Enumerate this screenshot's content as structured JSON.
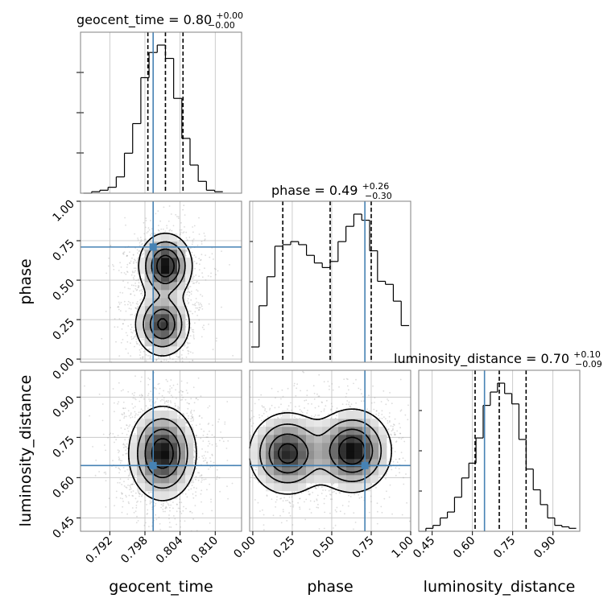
{
  "colors": {
    "truth": "#4682b4",
    "hist": "#000000",
    "quantile": "#000000",
    "grid": "#c0c0c0",
    "frame": "#808080",
    "density_max": "#111111"
  },
  "parameters": [
    {
      "key": "geocent_time",
      "label": "geocent_time",
      "range": [
        0.787,
        0.8145
      ],
      "ticks": [
        0.792,
        0.798,
        0.804,
        0.81
      ],
      "tick_labels": [
        "0.792",
        "0.798",
        "0.804",
        "0.810"
      ],
      "truth": 0.7994
    },
    {
      "key": "phase",
      "label": "phase",
      "range": [
        -0.02,
        1.0
      ],
      "ticks": [
        0.0,
        0.25,
        0.5,
        0.75,
        1.0
      ],
      "tick_labels": [
        "0.00",
        "0.25",
        "0.50",
        "0.75",
        "1.00"
      ],
      "truth": 0.71
    },
    {
      "key": "luminosity_distance",
      "label": "luminosity_distance",
      "range": [
        0.4,
        1.0
      ],
      "ticks": [
        0.45,
        0.6,
        0.75,
        0.9
      ],
      "tick_labels": [
        "0.45",
        "0.60",
        "0.75",
        "0.90"
      ],
      "truth": 0.645
    }
  ],
  "titles": [
    {
      "param": "geocent_time",
      "name": "geocent_time",
      "eq": " = ",
      "value": "0.80",
      "upper": "+0.00",
      "lower": "−0.00"
    },
    {
      "param": "phase",
      "name": "phase",
      "eq": " = ",
      "value": "0.49",
      "upper": "+0.26",
      "lower": "−0.30"
    },
    {
      "param": "luminosity_distance",
      "name": "luminosity_distance",
      "eq": " = ",
      "value": "0.70",
      "upper": "+0.10",
      "lower": "−0.09"
    }
  ],
  "chart_data": [
    {
      "type": "histogram",
      "parameter": "geocent_time",
      "bin_edges": [
        0.7875,
        0.7889,
        0.7903,
        0.7917,
        0.7931,
        0.7945,
        0.7959,
        0.7973,
        0.7987,
        0.8001,
        0.8015,
        0.8029,
        0.8043,
        0.8057,
        0.8071,
        0.8085,
        0.8099,
        0.8113
      ],
      "counts": [
        0.0,
        0.01,
        0.02,
        0.04,
        0.11,
        0.27,
        0.47,
        0.78,
        0.95,
        1.0,
        0.91,
        0.64,
        0.37,
        0.19,
        0.08,
        0.02,
        0.01
      ],
      "quantiles": [
        0.7985,
        0.8015,
        0.8045
      ]
    },
    {
      "type": "histogram",
      "parameter": "phase",
      "bin_edges": [
        -0.01,
        0.04,
        0.09,
        0.14,
        0.19,
        0.24,
        0.29,
        0.34,
        0.39,
        0.44,
        0.49,
        0.54,
        0.59,
        0.64,
        0.69,
        0.74,
        0.79,
        0.84,
        0.89,
        0.94,
        0.99
      ],
      "counts": [
        0.1,
        0.37,
        0.56,
        0.76,
        0.77,
        0.79,
        0.77,
        0.7,
        0.65,
        0.62,
        0.66,
        0.79,
        0.89,
        0.97,
        0.93,
        0.73,
        0.53,
        0.51,
        0.4,
        0.24
      ],
      "quantiles": [
        0.19,
        0.49,
        0.75
      ]
    },
    {
      "type": "histogram",
      "parameter": "luminosity_distance",
      "bin_edges": [
        0.4,
        0.4267,
        0.4533,
        0.48,
        0.5067,
        0.5333,
        0.56,
        0.5867,
        0.6133,
        0.64,
        0.6667,
        0.6933,
        0.72,
        0.7467,
        0.7733,
        0.8,
        0.8267,
        0.8533,
        0.88,
        0.9067,
        0.9333,
        0.96,
        0.9867
      ],
      "counts": [
        0.0,
        0.02,
        0.04,
        0.09,
        0.13,
        0.23,
        0.36,
        0.46,
        0.63,
        0.85,
        0.94,
        1.0,
        0.93,
        0.86,
        0.62,
        0.42,
        0.28,
        0.18,
        0.09,
        0.04,
        0.03,
        0.02
      ],
      "quantiles": [
        0.61,
        0.7,
        0.8
      ]
    },
    {
      "type": "density2d",
      "x": "geocent_time",
      "y": "phase",
      "modes": [
        {
          "x": 0.8015,
          "y": 0.59,
          "sx": 0.0022,
          "sy": 0.1,
          "w": 1.0
        },
        {
          "x": 0.801,
          "y": 0.22,
          "sx": 0.0023,
          "sy": 0.1,
          "w": 0.85
        }
      ]
    },
    {
      "type": "density2d",
      "x": "geocent_time",
      "y": "luminosity_distance",
      "modes": [
        {
          "x": 0.801,
          "y": 0.69,
          "sx": 0.0028,
          "sy": 0.085,
          "w": 1.0
        }
      ]
    },
    {
      "type": "density2d",
      "x": "phase",
      "y": "luminosity_distance",
      "modes": [
        {
          "x": 0.22,
          "y": 0.69,
          "sx": 0.12,
          "sy": 0.075,
          "w": 0.9
        },
        {
          "x": 0.63,
          "y": 0.7,
          "sx": 0.12,
          "sy": 0.075,
          "w": 1.0
        }
      ]
    }
  ]
}
